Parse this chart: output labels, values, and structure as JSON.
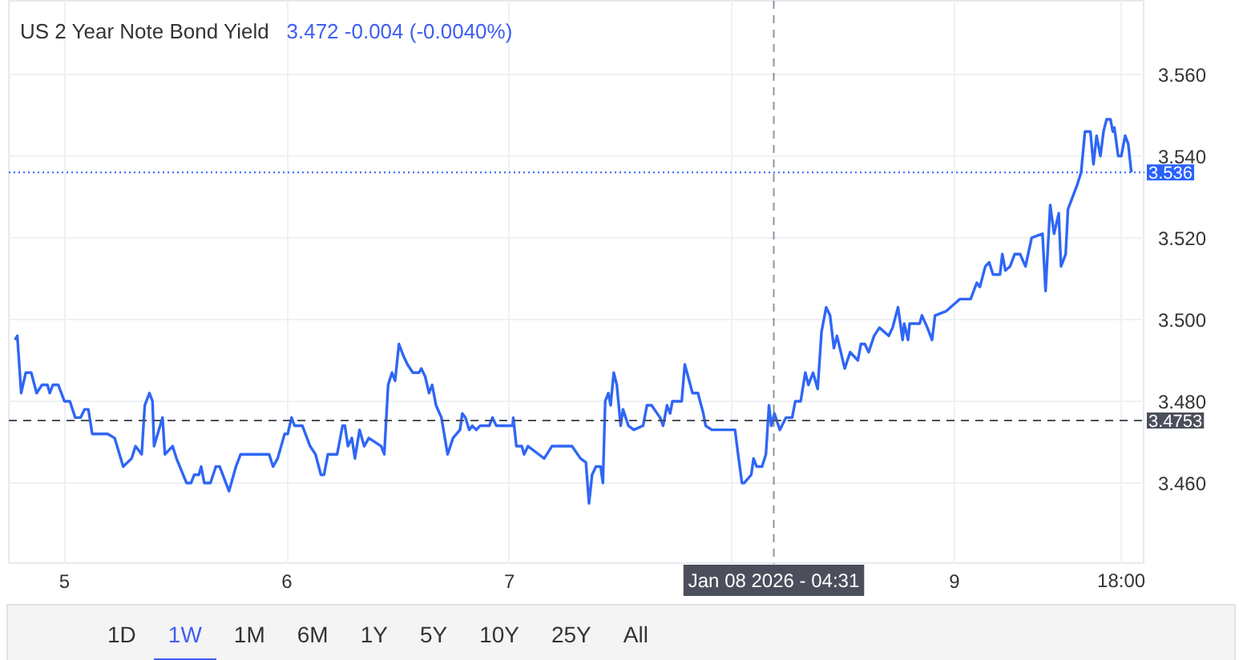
{
  "chart_data": {
    "type": "line",
    "title": "US 2 Year Note Bond Yield",
    "subtitle": "3.472 -0.004 (-0.0040%)",
    "color": "#2f66f5",
    "grid": true,
    "xlim": [
      "2026-01-04T18:00",
      "2026-01-09T20:35"
    ],
    "xticks": [
      {
        "value": "2026-01-05T00:00",
        "label": "5"
      },
      {
        "value": "2026-01-06T00:00",
        "label": "6"
      },
      {
        "value": "2026-01-07T00:00",
        "label": "7"
      },
      {
        "value": "2026-01-08T00:00",
        "label": null
      },
      {
        "value": "2026-01-09T00:00",
        "label": "9"
      },
      {
        "value": "2026-01-09T18:00",
        "label": "18:00"
      }
    ],
    "ylim": [
      3.44,
      3.578
    ],
    "yticks": [
      {
        "value": 3.46,
        "label": "3.460"
      },
      {
        "value": 3.48,
        "label": "3.480"
      },
      {
        "value": 3.5,
        "label": "3.500"
      },
      {
        "value": 3.52,
        "label": "3.520"
      },
      {
        "value": 3.54,
        "label": "3.540"
      },
      {
        "value": 3.56,
        "label": "3.560"
      }
    ],
    "ref_lines": [
      {
        "axis": "y",
        "value": 3.536,
        "label": "3.536",
        "color": "#2962ff",
        "line_style": "dotted"
      },
      {
        "axis": "y",
        "value": 3.4753,
        "label": "3.4753",
        "color": "#4b4f5b",
        "line_style": "dashed"
      },
      {
        "axis": "x",
        "value": "2026-01-08T04:31",
        "label": "Jan 08 2026 - 04:31",
        "color": "#4b4f5b",
        "line_style": "dashed"
      }
    ],
    "annotations": [
      "1D",
      "1W",
      "1M",
      "6M",
      "1Y",
      "5Y",
      "10Y",
      "25Y",
      "All"
    ],
    "x": [
      "2026-01-04T18:40",
      "2026-01-04T18:55",
      "2026-01-04T19:20",
      "2026-01-04T19:50",
      "2026-01-04T20:25",
      "2026-01-04T21:00",
      "2026-01-04T21:35",
      "2026-01-04T22:10",
      "2026-01-04T22:25",
      "2026-01-04T22:45",
      "2026-01-04T23:20",
      "2026-01-05T00:00",
      "2026-01-05T00:35",
      "2026-01-05T01:10",
      "2026-01-05T01:45",
      "2026-01-05T02:10",
      "2026-01-05T02:35",
      "2026-01-05T03:00",
      "2026-01-05T03:50",
      "2026-01-05T04:40",
      "2026-01-05T05:25",
      "2026-01-05T06:20",
      "2026-01-05T07:15",
      "2026-01-05T07:40",
      "2026-01-05T08:20",
      "2026-01-05T08:40",
      "2026-01-05T09:10",
      "2026-01-05T09:30",
      "2026-01-05T09:40",
      "2026-01-05T10:35",
      "2026-01-05T10:50",
      "2026-01-05T11:40",
      "2026-01-05T12:05",
      "2026-01-05T13:10",
      "2026-01-05T13:40",
      "2026-01-05T14:00",
      "2026-01-05T14:30",
      "2026-01-05T14:45",
      "2026-01-05T15:05",
      "2026-01-05T15:45",
      "2026-01-05T16:20",
      "2026-01-05T16:45",
      "2026-01-05T17:45",
      "2026-01-05T18:30",
      "2026-01-05T19:00",
      "2026-01-05T20:55",
      "2026-01-05T22:05",
      "2026-01-05T22:30",
      "2026-01-05T23:00",
      "2026-01-05T23:45",
      "2026-01-06T00:05",
      "2026-01-06T00:30",
      "2026-01-06T00:50",
      "2026-01-06T01:40",
      "2026-01-06T02:30",
      "2026-01-06T03:05",
      "2026-01-06T03:40",
      "2026-01-06T04:00",
      "2026-01-06T04:25",
      "2026-01-06T05:25",
      "2026-01-06T06:00",
      "2026-01-06T06:15",
      "2026-01-06T06:35",
      "2026-01-06T07:00",
      "2026-01-06T07:20",
      "2026-01-06T07:50",
      "2026-01-06T08:20",
      "2026-01-06T08:50",
      "2026-01-06T10:10",
      "2026-01-06T10:30",
      "2026-01-06T10:55",
      "2026-01-06T11:20",
      "2026-01-06T11:40",
      "2026-01-06T12:05",
      "2026-01-06T12:35",
      "2026-01-06T13:00",
      "2026-01-06T13:35",
      "2026-01-06T14:15",
      "2026-01-06T14:30",
      "2026-01-06T14:55",
      "2026-01-06T15:20",
      "2026-01-06T15:40",
      "2026-01-06T16:05",
      "2026-01-06T16:40",
      "2026-01-06T17:20",
      "2026-01-06T17:55",
      "2026-01-06T18:40",
      "2026-01-06T18:55",
      "2026-01-06T19:15",
      "2026-01-06T19:40",
      "2026-01-06T20:00",
      "2026-01-06T20:25",
      "2026-01-06T20:50",
      "2026-01-06T21:50",
      "2026-01-06T22:10",
      "2026-01-06T22:35",
      "2026-01-07T00:20",
      "2026-01-07T00:25",
      "2026-01-07T00:45",
      "2026-01-07T01:20",
      "2026-01-07T01:35",
      "2026-01-07T02:00",
      "2026-01-07T03:10",
      "2026-01-07T03:45",
      "2026-01-07T04:35",
      "2026-01-07T06:45",
      "2026-01-07T07:40",
      "2026-01-07T08:15",
      "2026-01-07T08:35",
      "2026-01-07T08:55",
      "2026-01-07T09:20",
      "2026-01-07T09:50",
      "2026-01-07T10:05",
      "2026-01-07T10:20",
      "2026-01-07T10:40",
      "2026-01-07T10:55",
      "2026-01-07T11:15",
      "2026-01-07T11:35",
      "2026-01-07T12:00",
      "2026-01-07T12:15",
      "2026-01-07T12:50",
      "2026-01-07T13:25",
      "2026-01-07T14:25",
      "2026-01-07T14:50",
      "2026-01-07T15:20",
      "2026-01-07T16:15",
      "2026-01-07T16:35",
      "2026-01-07T17:00",
      "2026-01-07T17:20",
      "2026-01-07T17:35",
      "2026-01-07T18:35",
      "2026-01-07T18:55",
      "2026-01-07T19:45",
      "2026-01-07T20:20",
      "2026-01-07T20:55",
      "2026-01-07T21:10",
      "2026-01-07T21:50",
      "2026-01-08T00:20",
      "2026-01-08T00:40",
      "2026-01-08T01:05",
      "2026-01-08T01:20",
      "2026-01-08T02:05",
      "2026-01-08T02:20",
      "2026-01-08T02:40",
      "2026-01-08T03:15",
      "2026-01-08T03:40",
      "2026-01-08T04:00",
      "2026-01-08T04:15",
      "2026-01-08T04:35",
      "2026-01-08T05:10",
      "2026-01-08T05:50",
      "2026-01-08T06:30",
      "2026-01-08T06:50",
      "2026-01-08T07:25",
      "2026-01-08T07:55",
      "2026-01-08T08:15",
      "2026-01-08T08:45",
      "2026-01-08T09:15",
      "2026-01-08T09:40",
      "2026-01-08T10:10",
      "2026-01-08T10:35",
      "2026-01-08T11:00",
      "2026-01-08T11:20",
      "2026-01-08T12:10",
      "2026-01-08T12:45",
      "2026-01-08T13:35",
      "2026-01-08T13:55",
      "2026-01-08T14:20",
      "2026-01-08T14:45",
      "2026-01-08T15:20",
      "2026-01-08T15:55",
      "2026-01-08T16:55",
      "2026-01-08T17:20",
      "2026-01-08T17:55",
      "2026-01-08T18:25",
      "2026-01-08T18:35",
      "2026-01-08T19:00",
      "2026-01-08T19:10",
      "2026-01-08T20:15",
      "2026-01-08T20:30",
      "2026-01-08T21:05",
      "2026-01-08T21:35",
      "2026-01-08T21:55",
      "2026-01-08T23:05",
      "2026-01-09T00:35",
      "2026-01-09T01:45",
      "2026-01-09T02:25",
      "2026-01-09T02:45",
      "2026-01-09T03:20",
      "2026-01-09T03:45",
      "2026-01-09T04:10",
      "2026-01-09T04:55",
      "2026-01-09T05:10",
      "2026-01-09T05:30",
      "2026-01-09T06:00",
      "2026-01-09T06:30",
      "2026-01-09T07:05",
      "2026-01-09T07:40",
      "2026-01-09T08:20",
      "2026-01-09T09:30",
      "2026-01-09T09:50",
      "2026-01-09T10:20",
      "2026-01-09T10:45",
      "2026-01-09T11:15",
      "2026-01-09T11:30",
      "2026-01-09T12:00",
      "2026-01-09T12:15",
      "2026-01-09T13:15",
      "2026-01-09T13:40",
      "2026-01-09T14:05",
      "2026-01-09T14:40",
      "2026-01-09T15:00",
      "2026-01-09T15:20",
      "2026-01-09T15:45",
      "2026-01-09T16:05",
      "2026-01-09T16:25",
      "2026-01-09T16:50",
      "2026-01-09T17:05",
      "2026-01-09T17:15",
      "2026-01-09T17:40",
      "2026-01-09T18:00",
      "2026-01-09T18:25",
      "2026-01-09T18:45",
      "2026-01-09T19:05"
    ],
    "values": [
      3.495,
      3.496,
      3.482,
      3.487,
      3.487,
      3.482,
      3.484,
      3.484,
      3.482,
      3.484,
      3.484,
      3.48,
      3.48,
      3.476,
      3.476,
      3.478,
      3.478,
      3.472,
      3.472,
      3.472,
      3.471,
      3.464,
      3.466,
      3.469,
      3.467,
      3.479,
      3.482,
      3.48,
      3.469,
      3.476,
      3.467,
      3.469,
      3.466,
      3.46,
      3.46,
      3.462,
      3.462,
      3.464,
      3.46,
      3.46,
      3.464,
      3.464,
      3.458,
      3.464,
      3.467,
      3.467,
      3.467,
      3.464,
      3.466,
      3.472,
      3.472,
      3.476,
      3.474,
      3.474,
      3.469,
      3.467,
      3.462,
      3.462,
      3.467,
      3.467,
      3.474,
      3.474,
      3.469,
      3.471,
      3.466,
      3.473,
      3.469,
      3.471,
      3.469,
      3.467,
      3.484,
      3.487,
      3.485,
      3.494,
      3.491,
      3.489,
      3.487,
      3.487,
      3.488,
      3.486,
      3.482,
      3.484,
      3.479,
      3.476,
      3.467,
      3.471,
      3.473,
      3.477,
      3.476,
      3.473,
      3.474,
      3.473,
      3.474,
      3.474,
      3.476,
      3.474,
      3.474,
      3.476,
      3.469,
      3.469,
      3.467,
      3.469,
      3.467,
      3.466,
      3.469,
      3.469,
      3.466,
      3.465,
      3.455,
      3.462,
      3.464,
      3.464,
      3.46,
      3.48,
      3.482,
      3.479,
      3.487,
      3.484,
      3.474,
      3.478,
      3.474,
      3.473,
      3.474,
      3.479,
      3.479,
      3.476,
      3.474,
      3.479,
      3.477,
      3.48,
      3.48,
      3.489,
      3.482,
      3.482,
      3.477,
      3.474,
      3.473,
      3.473,
      3.467,
      3.46,
      3.46,
      3.462,
      3.466,
      3.464,
      3.464,
      3.467,
      3.479,
      3.474,
      3.477,
      3.473,
      3.476,
      3.476,
      3.48,
      3.48,
      3.487,
      3.484,
      3.487,
      3.483,
      3.497,
      3.503,
      3.501,
      3.493,
      3.496,
      3.488,
      3.492,
      3.49,
      3.494,
      3.494,
      3.492,
      3.496,
      3.498,
      3.496,
      3.498,
      3.503,
      3.495,
      3.499,
      3.495,
      3.499,
      3.499,
      3.501,
      3.498,
      3.495,
      3.501,
      3.502,
      3.505,
      3.505,
      3.509,
      3.508,
      3.513,
      3.514,
      3.511,
      3.511,
      3.516,
      3.512,
      3.513,
      3.516,
      3.516,
      3.513,
      3.52,
      3.521,
      3.507,
      3.528,
      3.521,
      3.526,
      3.513,
      3.516,
      3.527,
      3.533,
      3.536,
      3.546,
      3.546,
      3.538,
      3.545,
      3.54,
      3.546,
      3.549,
      3.549,
      3.546,
      3.547,
      3.54,
      3.54,
      3.545,
      3.543,
      3.536
    ]
  }
}
